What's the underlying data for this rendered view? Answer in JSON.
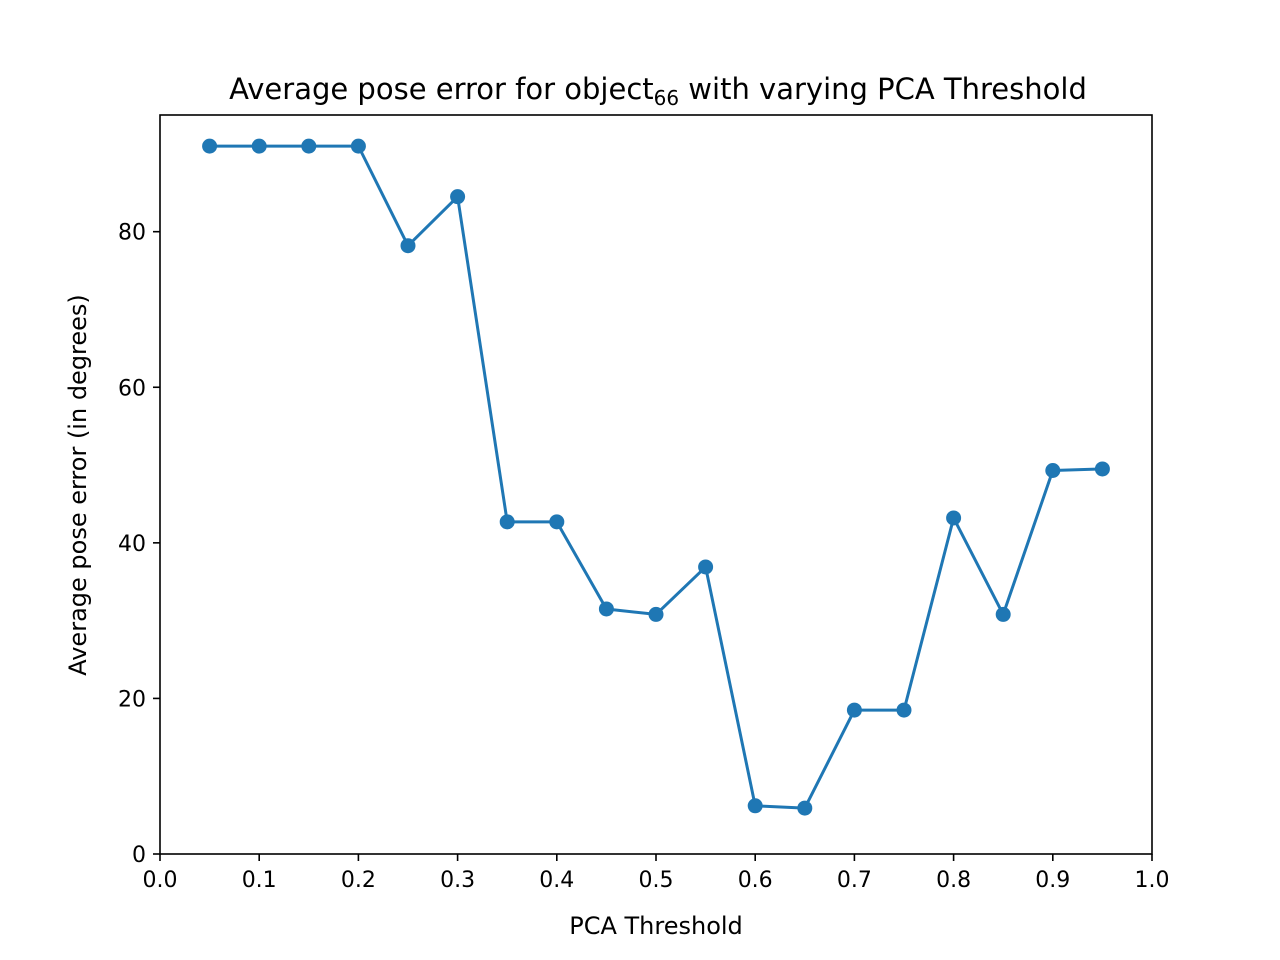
{
  "chart_data": {
    "type": "line",
    "title": {
      "main": "Average pose error for object",
      "subscript": "66",
      "suffix": " with varying PCA Threshold"
    },
    "xlabel": "PCA Threshold",
    "ylabel": "Average pose error (in degrees)",
    "xlim": [
      0.0,
      1.0
    ],
    "ylim": [
      0,
      95
    ],
    "x_ticks": [
      0.0,
      0.1,
      0.2,
      0.3,
      0.4,
      0.5,
      0.6,
      0.7,
      0.8,
      0.9,
      1.0
    ],
    "x_tick_labels": [
      "0.0",
      "0.1",
      "0.2",
      "0.3",
      "0.4",
      "0.5",
      "0.6",
      "0.7",
      "0.8",
      "0.9",
      "1.0"
    ],
    "y_ticks": [
      0,
      20,
      40,
      60,
      80
    ],
    "y_tick_labels": [
      "0",
      "20",
      "40",
      "60",
      "80"
    ],
    "grid": false,
    "marker": "circle",
    "series": [
      {
        "color": "#1f77b4",
        "x": [
          0.05,
          0.1,
          0.15,
          0.2,
          0.25,
          0.3,
          0.35,
          0.4,
          0.45,
          0.5,
          0.55,
          0.6,
          0.65,
          0.7,
          0.75,
          0.8,
          0.85,
          0.9,
          0.95
        ],
        "y": [
          91.0,
          91.0,
          91.0,
          91.0,
          78.2,
          84.5,
          42.7,
          42.7,
          31.5,
          30.8,
          36.9,
          6.2,
          5.9,
          18.5,
          18.5,
          43.2,
          30.8,
          49.3,
          49.5
        ]
      }
    ]
  }
}
